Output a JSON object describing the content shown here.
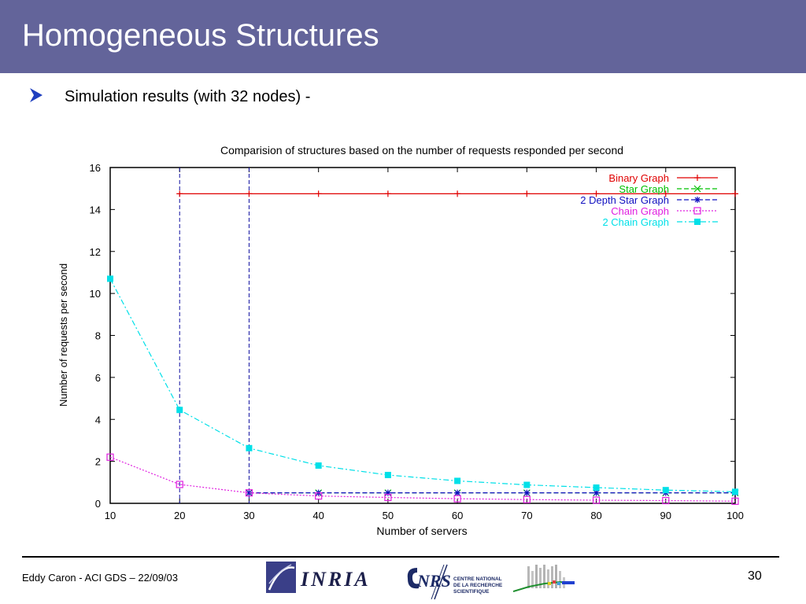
{
  "slide": {
    "title": "Homogeneous Structures",
    "bullet": "Simulation results (with 32 nodes) -",
    "footer_left": "Eddy Caron - ACI GDS – 22/09/03",
    "page_number": "30"
  },
  "logos": {
    "inria": "INRIA",
    "cnrs_text": [
      "CENTRE NATIONAL",
      "DE LA RECHERCHE",
      "SCIENTIFIQUE"
    ]
  },
  "colors": {
    "title_bar": "#63649a",
    "bullet_arrow": "#1f3fbf",
    "binary": "#e00000",
    "star": "#00c000",
    "depth_star": "#1010c0",
    "chain": "#e020e0",
    "chain2": "#00e0e8",
    "vline": "#1010a0"
  },
  "chart_data": {
    "type": "line",
    "title": "Comparision of structures based on the number of requests responded per second",
    "xlabel": "Number of servers",
    "ylabel": "Number of requests per second",
    "xlim": [
      10,
      100
    ],
    "ylim": [
      0,
      16
    ],
    "xticks": [
      10,
      20,
      30,
      40,
      50,
      60,
      70,
      80,
      90,
      100
    ],
    "yticks": [
      0,
      2,
      4,
      6,
      8,
      10,
      12,
      14,
      16
    ],
    "grid": false,
    "legend_position": "top-right",
    "vertical_lines": [
      20,
      30
    ],
    "series": [
      {
        "name": "Binary Graph",
        "color_key": "binary",
        "marker": "plus",
        "dash": "solid",
        "x": [
          20,
          30,
          40,
          50,
          60,
          70,
          80,
          90,
          100
        ],
        "y": [
          14.75,
          14.75,
          14.75,
          14.75,
          14.75,
          14.75,
          14.75,
          14.75,
          14.75
        ]
      },
      {
        "name": "Star Graph",
        "color_key": "star",
        "marker": "x",
        "dash": "dashed",
        "x": [
          30,
          40,
          50,
          60,
          70,
          80,
          90,
          100
        ],
        "y": [
          0.5,
          0.5,
          0.5,
          0.5,
          0.5,
          0.5,
          0.5,
          0.5
        ]
      },
      {
        "name": "2 Depth Star Graph",
        "color_key": "depth_star",
        "marker": "star",
        "dash": "dashed",
        "x": [
          30,
          40,
          50,
          60,
          70,
          80,
          90,
          100
        ],
        "y": [
          0.5,
          0.5,
          0.5,
          0.5,
          0.5,
          0.5,
          0.5,
          0.5
        ]
      },
      {
        "name": "Chain Graph",
        "color_key": "chain",
        "marker": "open-square",
        "dash": "dotted",
        "x": [
          10,
          20,
          30,
          40,
          50,
          60,
          70,
          80,
          90,
          100
        ],
        "y": [
          2.2,
          0.9,
          0.5,
          0.35,
          0.28,
          0.22,
          0.18,
          0.15,
          0.13,
          0.1
        ]
      },
      {
        "name": "2 Chain Graph",
        "color_key": "chain2",
        "marker": "filled-square",
        "dash": "dashdot",
        "x": [
          10,
          20,
          30,
          40,
          50,
          60,
          70,
          80,
          90,
          100
        ],
        "y": [
          10.7,
          4.45,
          2.63,
          1.8,
          1.35,
          1.07,
          0.88,
          0.75,
          0.63,
          0.55
        ]
      }
    ]
  }
}
